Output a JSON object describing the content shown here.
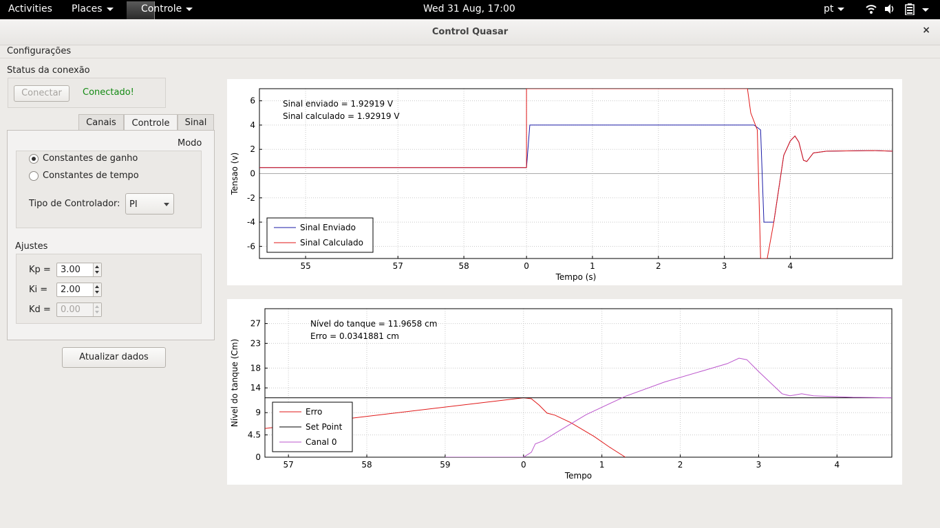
{
  "topbar": {
    "activities": "Activities",
    "places": "Places",
    "app_menu": "Controle",
    "clock": "Wed 31 Aug, 17:00",
    "language": "pt"
  },
  "window": {
    "title": "Control Quasar",
    "close": "×"
  },
  "menubar": {
    "configuracoes": "Configurações"
  },
  "connection": {
    "title": "Status da conexão",
    "connect_button": "Conectar",
    "status_text": "Conectado!",
    "status_color": "#138a13"
  },
  "tabs": [
    {
      "label": "Canais"
    },
    {
      "label": "Controle"
    },
    {
      "label": "Sinal"
    }
  ],
  "controle": {
    "modo_label": "Modo",
    "radio_ganho": "Constantes de ganho",
    "radio_tempo": "Constantes de tempo",
    "selected_radio": "Constantes de ganho",
    "tipo_label": "Tipo de Controlador:",
    "tipo_value": "PI",
    "ajustes_label": "Ajustes",
    "kp_label": "Kp =",
    "kp_value": "3.00",
    "ki_label": "Ki =",
    "ki_value": "2.00",
    "kd_label": "Kd =",
    "kd_value": "0.00"
  },
  "update_button": "Atualizar dados",
  "chart_data": [
    {
      "type": "line",
      "xlabel": "Tempo (s)",
      "ylabel": "Tensao (v)",
      "ylim": [
        -7,
        7
      ],
      "x_tick_labels": [
        "55",
        "57",
        "58",
        "0",
        "1",
        "2",
        "3",
        "4"
      ],
      "y_tick_labels": [
        "6",
        "4",
        "2",
        "0",
        "-2",
        "-4",
        "-6"
      ],
      "annotations": [
        "Sinal enviado = 1.92919 V",
        "Sinal calculado = 1.92919 V"
      ],
      "grid": true,
      "legend_placement": "bottom-left",
      "series": [
        {
          "name": "Sinal Enviado",
          "color": "#1a1aa6",
          "points": [
            [
              0,
              0.5
            ],
            [
              4.05,
              0.5
            ],
            [
              4.1,
              4
            ],
            [
              7.5,
              4
            ],
            [
              7.6,
              3.6
            ],
            [
              7.65,
              -4
            ],
            [
              7.8,
              -4
            ],
            [
              7.95,
              1.5
            ],
            [
              8.05,
              2.7
            ],
            [
              8.12,
              3.1
            ],
            [
              8.18,
              2.6
            ],
            [
              8.25,
              1.1
            ],
            [
              8.3,
              1.0
            ],
            [
              8.4,
              1.7
            ],
            [
              8.6,
              1.85
            ],
            [
              9.3,
              1.9
            ],
            [
              9.6,
              1.85
            ]
          ]
        },
        {
          "name": "Sinal Calculado",
          "color": "#e01616",
          "points": [
            [
              0,
              0.5
            ],
            [
              4.05,
              0.5
            ],
            [
              4.05,
              7
            ],
            [
              4.05,
              7
            ],
            [
              7.4,
              7
            ],
            [
              7.45,
              5
            ],
            [
              7.55,
              3.6
            ],
            [
              7.6,
              -7
            ],
            [
              7.7,
              -7
            ],
            [
              7.8,
              -4
            ],
            [
              7.95,
              1.5
            ],
            [
              8.05,
              2.7
            ],
            [
              8.12,
              3.1
            ],
            [
              8.18,
              2.6
            ],
            [
              8.25,
              1.1
            ],
            [
              8.3,
              1.0
            ],
            [
              8.4,
              1.7
            ],
            [
              8.6,
              1.85
            ],
            [
              9.3,
              1.9
            ],
            [
              9.6,
              1.85
            ]
          ]
        }
      ]
    },
    {
      "type": "line",
      "xlabel": "Tempo",
      "ylabel": "Nível do tanque (Cm)",
      "ylim": [
        0,
        30
      ],
      "x_tick_labels": [
        "57",
        "58",
        "59",
        "0",
        "1",
        "2",
        "3",
        "4"
      ],
      "y_tick_labels": [
        "27",
        "23",
        "18",
        "14",
        "9",
        "4.5",
        "0"
      ],
      "annotations": [
        "Nível do tanque = 11.9658 cm",
        "Erro = 0.0341881 cm"
      ],
      "grid": true,
      "legend_placement": "bottom-left",
      "series": [
        {
          "name": "Erro",
          "color": "#e01616",
          "points": [
            [
              0,
              5.8
            ],
            [
              3.3,
              12
            ],
            [
              3.4,
              11.8
            ],
            [
              3.5,
              10.5
            ],
            [
              3.6,
              8.9
            ],
            [
              3.7,
              8.5
            ],
            [
              3.9,
              7
            ],
            [
              4.2,
              4.2
            ],
            [
              4.4,
              2
            ],
            [
              4.6,
              0
            ]
          ]
        },
        {
          "name": "Set Point",
          "color": "#000000",
          "points": [
            [
              0,
              12
            ],
            [
              8.0,
              12
            ]
          ]
        },
        {
          "name": "Canal 0",
          "color": "#bb55cc",
          "points": [
            [
              2.3,
              0
            ],
            [
              3.3,
              0
            ],
            [
              3.4,
              1
            ],
            [
              3.45,
              2.7
            ],
            [
              3.55,
              3.3
            ],
            [
              3.7,
              4.8
            ],
            [
              4.1,
              8.6
            ],
            [
              4.6,
              12.3
            ],
            [
              5.1,
              15.2
            ],
            [
              5.6,
              17.5
            ],
            [
              5.9,
              18.9
            ],
            [
              6.05,
              20
            ],
            [
              6.15,
              19.7
            ],
            [
              6.3,
              17.3
            ],
            [
              6.5,
              14.3
            ],
            [
              6.6,
              12.8
            ],
            [
              6.7,
              12.4
            ],
            [
              6.85,
              12.8
            ],
            [
              7.0,
              12.4
            ],
            [
              7.5,
              12.1
            ],
            [
              8.0,
              12.0
            ]
          ]
        }
      ]
    }
  ]
}
